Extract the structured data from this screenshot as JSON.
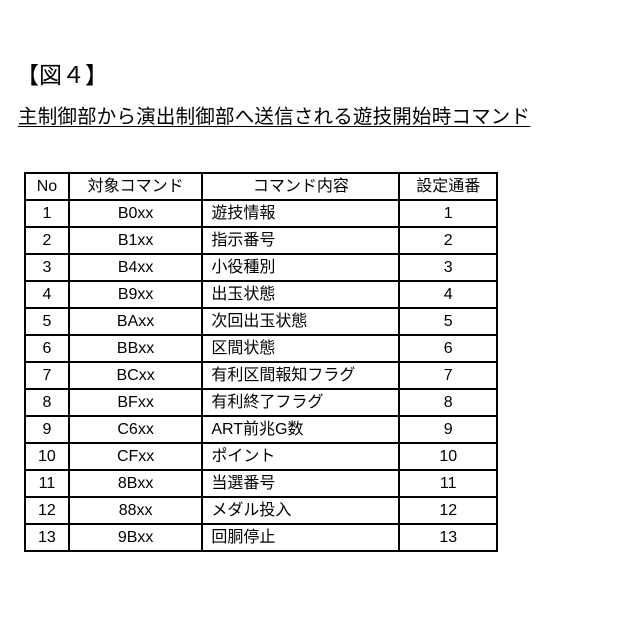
{
  "figure_label": "【図４】",
  "title": "主制御部から演出制御部へ送信される遊技開始時コマンド",
  "table": {
    "headers": [
      "No",
      "対象コマンド",
      "コマンド内容",
      "設定通番"
    ],
    "rows": [
      [
        "1",
        "B0xx",
        "遊技情報",
        "1"
      ],
      [
        "2",
        "B1xx",
        "指示番号",
        "2"
      ],
      [
        "3",
        "B4xx",
        "小役種別",
        "3"
      ],
      [
        "4",
        "B9xx",
        "出玉状態",
        "4"
      ],
      [
        "5",
        "BAxx",
        "次回出玉状態",
        "5"
      ],
      [
        "6",
        "BBxx",
        "区間状態",
        "6"
      ],
      [
        "7",
        "BCxx",
        "有利区間報知フラグ",
        "7"
      ],
      [
        "8",
        "BFxx",
        "有利終了フラグ",
        "8"
      ],
      [
        "9",
        "C6xx",
        "ART前兆G数",
        "9"
      ],
      [
        "10",
        "CFxx",
        "ポイント",
        "10"
      ],
      [
        "11",
        "8Bxx",
        "当選番号",
        "11"
      ],
      [
        "12",
        "88xx",
        "メダル投入",
        "12"
      ],
      [
        "13",
        "9Bxx",
        "回胴停止",
        "13"
      ]
    ]
  }
}
